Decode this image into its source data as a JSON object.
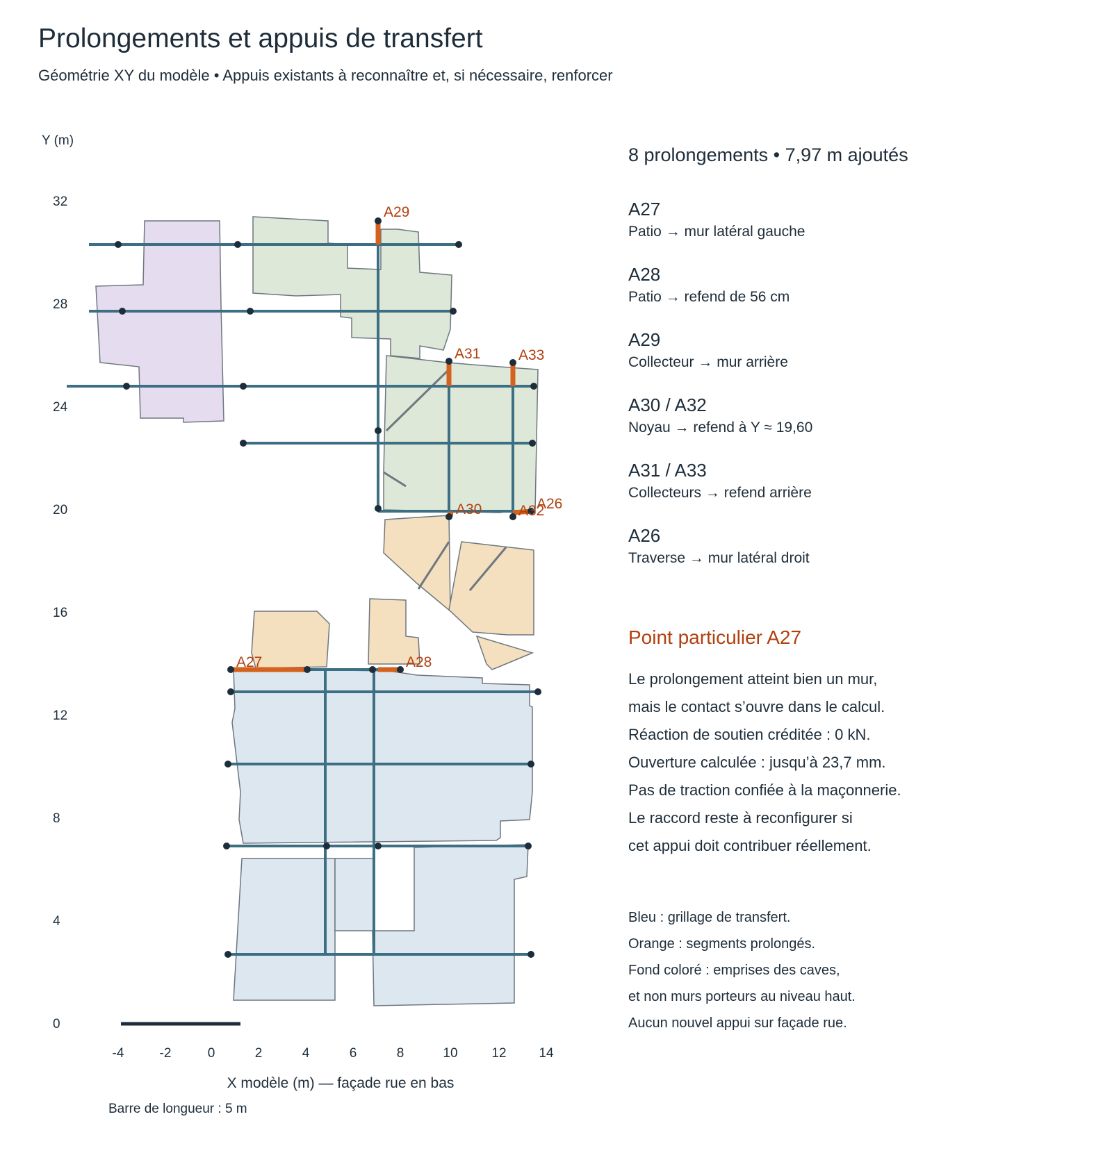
{
  "title": "Prolongements et appuis de transfert",
  "subtitle": "Géométrie XY du modèle • Appuis existants à reconnaître et, si nécessaire, renforcer",
  "axes": {
    "y_label": "Y (m)",
    "y_ticks": [
      "0",
      "4",
      "8",
      "12",
      "16",
      "20",
      "24",
      "28",
      "32"
    ],
    "x_ticks": [
      "-4",
      "-2",
      "0",
      "2",
      "4",
      "6",
      "8",
      "10",
      "12",
      "14"
    ],
    "x_label": "X modèle (m) — façade rue en bas",
    "scale_bar_label": "Barre de longueur : 5 m",
    "scale_bar_length_m": 5
  },
  "prolongation_labels": [
    "A29",
    "A31",
    "A33",
    "A26",
    "A30",
    "A32",
    "A27",
    "A28"
  ],
  "summary": "8 prolongements • 7,97 m ajoutés",
  "items": [
    {
      "code": "A27",
      "desc": "Patio → mur latéral gauche"
    },
    {
      "code": "A28",
      "desc": "Patio → refend de 56 cm"
    },
    {
      "code": "A29",
      "desc": "Collecteur → mur arrière"
    },
    {
      "code": "A30 / A32",
      "desc": "Noyau → refend à Y ≈ 19,60"
    },
    {
      "code": "A31 / A33",
      "desc": "Collecteurs → refend arrière"
    },
    {
      "code": "A26",
      "desc": "Traverse → mur latéral droit"
    }
  ],
  "note": {
    "title": "Point particulier A27",
    "lines": [
      "Le prolongement atteint bien un mur,",
      "mais le contact s’ouvre dans le calcul.",
      "Réaction de soutien créditée : 0 kN.",
      "Ouverture calculée : jusqu’à 23,7 mm.",
      "Pas de traction confiée à la maçonnerie.",
      "Le raccord reste à reconfigurer si",
      "cet appui doit contribuer réellement."
    ]
  },
  "legend": [
    "Bleu : grillage de transfert.",
    "Orange : segments prolongés.",
    "Fond coloré : emprises des caves,",
    "et non murs porteurs au niveau haut.",
    "Aucun nouvel appui sur façade rue."
  ],
  "colors": {
    "grid_beam": "#3d6f84",
    "prolongation": "#d4621e",
    "label_accent": "#b2400f",
    "node": "#1e2d3a",
    "cellar_purple": "#e6dcef",
    "cellar_green": "#dde8d8",
    "cellar_orange": "#f4dfbe",
    "cellar_blue": "#dde7ef"
  }
}
